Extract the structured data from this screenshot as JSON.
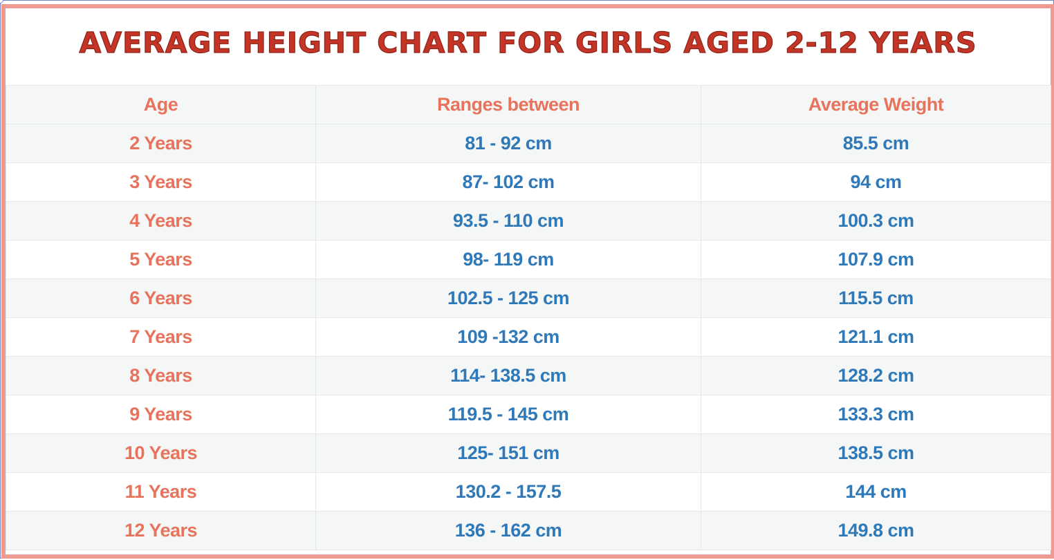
{
  "title": "AVERAGE HEIGHT CHART FOR GIRLS AGED 2-12 YEARS",
  "colors": {
    "title": "#c33526",
    "border": "#ee9a90",
    "header_text": "#e8735c",
    "age_text": "#e8735c",
    "value_text": "#2f79b8",
    "stripe": "#f4f7f6"
  },
  "table": {
    "headers": [
      "Age",
      "Ranges between",
      "Average Weight"
    ],
    "rows": [
      [
        "2 Years",
        "81 - 92 cm",
        "85.5 cm"
      ],
      [
        "3 Years",
        "87- 102 cm",
        "94 cm"
      ],
      [
        "4 Years",
        "93.5 - 110 cm",
        "100.3 cm"
      ],
      [
        "5 Years",
        "98- 119 cm",
        "107.9 cm"
      ],
      [
        "6 Years",
        "102.5 - 125 cm",
        "115.5 cm"
      ],
      [
        "7 Years",
        "109 -132 cm",
        "121.1 cm"
      ],
      [
        "8 Years",
        "114- 138.5 cm",
        "128.2 cm"
      ],
      [
        "9 Years",
        "119.5 - 145 cm",
        "133.3 cm"
      ],
      [
        "10 Years",
        "125- 151 cm",
        "138.5 cm"
      ],
      [
        "11 Years",
        "130.2 - 157.5",
        "144 cm"
      ],
      [
        "12 Years",
        "136 - 162 cm",
        "149.8 cm"
      ]
    ]
  }
}
